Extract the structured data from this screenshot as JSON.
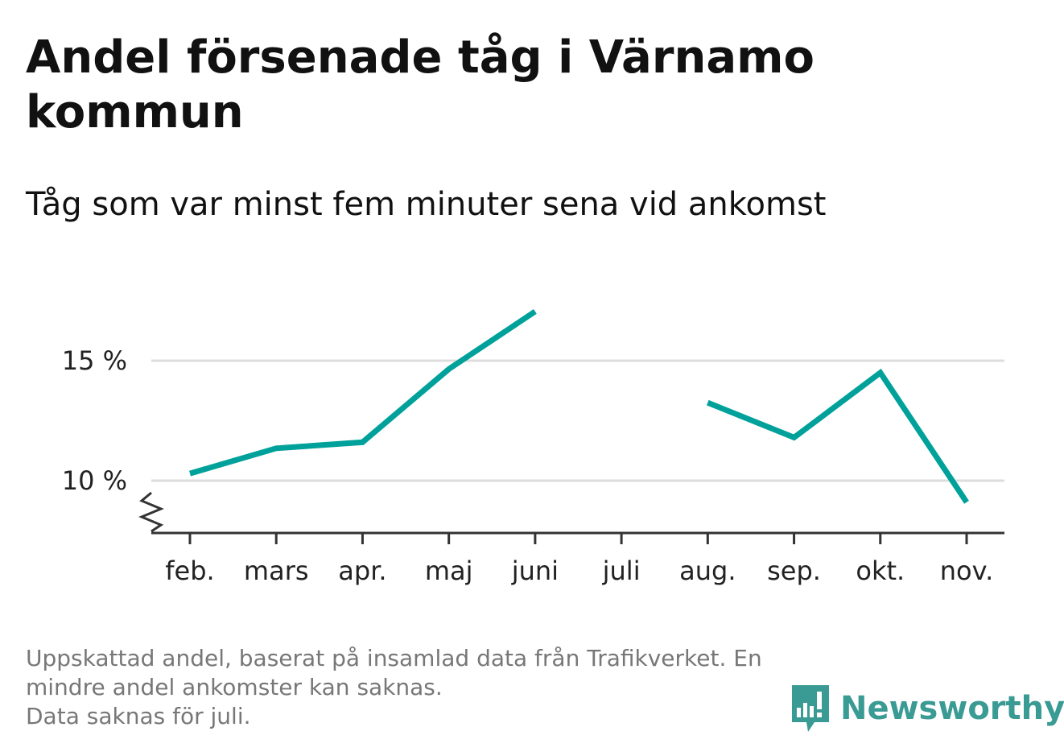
{
  "header": {
    "title": "Andel försenade tåg i Värnamo kommun",
    "subtitle": "Tåg som var minst fem minuter sena vid ankomst"
  },
  "chart_data": {
    "type": "line",
    "categories": [
      "feb.",
      "mars",
      "apr.",
      "maj",
      "juni",
      "juli",
      "aug.",
      "sep.",
      "okt.",
      "nov."
    ],
    "series": [
      {
        "values": [
          10.3,
          11.35,
          11.6,
          14.65,
          17.05,
          null,
          13.25,
          11.8,
          14.5,
          9.1
        ]
      }
    ],
    "y_ticks": [
      10,
      15
    ],
    "y_tick_labels": [
      "10 %",
      "15 %"
    ],
    "ylim": [
      7.9,
      18
    ],
    "grid": true,
    "y_axis_break": true,
    "line_color": "#00a19a"
  },
  "footnote": {
    "line1": "Uppskattad andel, baserat på insamlad data från Trafikverket. En mindre andel ankomster kan saknas.",
    "line2": "Data saknas för juli."
  },
  "brand": {
    "name": "Newsworthy",
    "icon": "newsworthy-logo-icon",
    "color": "#3a9a94"
  }
}
